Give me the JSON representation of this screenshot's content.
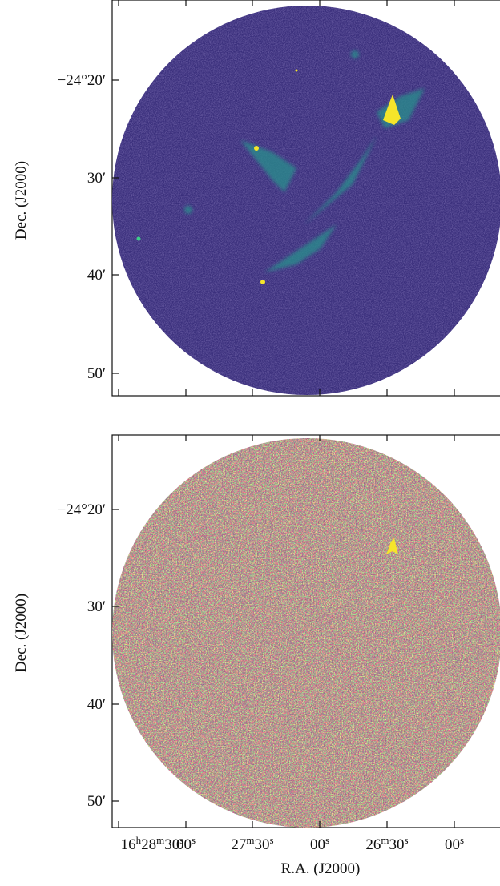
{
  "figure": {
    "panels": [
      {
        "y_label": "Dec.  (J2000)",
        "y_tick_labels": [
          "−24°20′",
          "30′",
          "40′",
          "50′"
        ]
      },
      {
        "y_label": "Dec.  (J2000)",
        "y_tick_labels": [
          "−24°20′",
          "30′",
          "40′",
          "50′"
        ]
      }
    ],
    "x_tick_labels": [
      [
        "16",
        "h",
        "28",
        "m",
        "30",
        "s"
      ],
      [
        "00",
        "s"
      ],
      [
        "27",
        "m",
        "30",
        "s"
      ],
      [
        "00",
        "s"
      ],
      [
        "26",
        "m",
        "30",
        "s"
      ],
      [
        "00",
        "s"
      ]
    ],
    "x_label": "R.A. (J2000)"
  }
}
